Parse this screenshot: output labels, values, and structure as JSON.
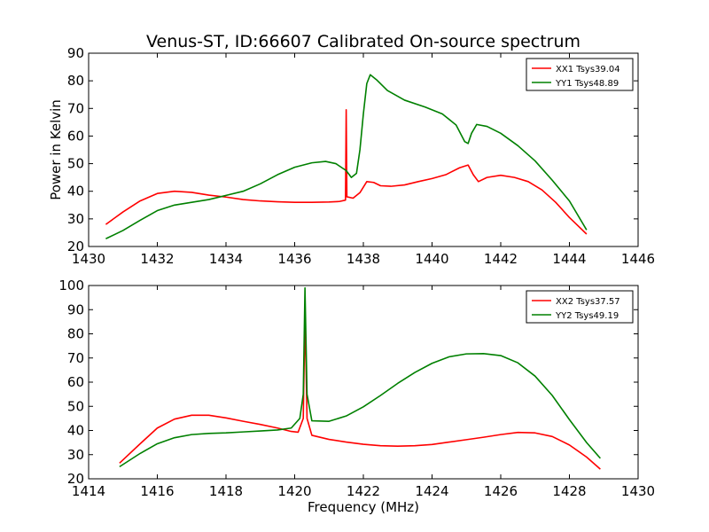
{
  "title": "Venus-ST, ID:66607 Calibrated On-source spectrum",
  "chart_data": [
    {
      "type": "line",
      "ylabel": "Power in Kelvin",
      "xlabel": "",
      "xlim": [
        1430,
        1446
      ],
      "ylim": [
        20,
        90
      ],
      "xticks": [
        1430,
        1432,
        1434,
        1436,
        1438,
        1440,
        1442,
        1444,
        1446
      ],
      "yticks": [
        20,
        30,
        40,
        50,
        60,
        70,
        80,
        90
      ],
      "grid": false,
      "legend_position": "top-right",
      "series": [
        {
          "name": "XX1 Tsys39.04",
          "color": "#ff0000",
          "points": [
            [
              1430.5,
              28
            ],
            [
              1431,
              32.5
            ],
            [
              1431.5,
              36.5
            ],
            [
              1432,
              39.2
            ],
            [
              1432.5,
              40
            ],
            [
              1433,
              39.6
            ],
            [
              1433.5,
              38.6
            ],
            [
              1434,
              37.9
            ],
            [
              1434.5,
              37
            ],
            [
              1435,
              36.5
            ],
            [
              1435.5,
              36.2
            ],
            [
              1436,
              36
            ],
            [
              1436.5,
              36
            ],
            [
              1437,
              36.1
            ],
            [
              1437.3,
              36.3
            ],
            [
              1437.48,
              36.8
            ],
            [
              1437.5,
              69.5
            ],
            [
              1437.52,
              38
            ],
            [
              1437.7,
              37.5
            ],
            [
              1437.9,
              39.5
            ],
            [
              1438.1,
              43.5
            ],
            [
              1438.3,
              43.2
            ],
            [
              1438.5,
              42
            ],
            [
              1438.8,
              41.8
            ],
            [
              1439.2,
              42.3
            ],
            [
              1439.6,
              43.5
            ],
            [
              1440,
              44.6
            ],
            [
              1440.4,
              46
            ],
            [
              1440.8,
              48.5
            ],
            [
              1441.05,
              49.5
            ],
            [
              1441.2,
              46
            ],
            [
              1441.35,
              43.5
            ],
            [
              1441.6,
              45
            ],
            [
              1442,
              45.8
            ],
            [
              1442.4,
              45
            ],
            [
              1442.8,
              43.5
            ],
            [
              1443.2,
              40.5
            ],
            [
              1443.6,
              36
            ],
            [
              1444,
              30.5
            ],
            [
              1444.5,
              24.5
            ]
          ]
        },
        {
          "name": "YY1 Tsys48.89",
          "color": "#008000",
          "points": [
            [
              1430.5,
              22.8
            ],
            [
              1431,
              25.8
            ],
            [
              1431.5,
              29.5
            ],
            [
              1432,
              33
            ],
            [
              1432.5,
              35
            ],
            [
              1433,
              36
            ],
            [
              1433.5,
              37
            ],
            [
              1434,
              38.5
            ],
            [
              1434.5,
              40
            ],
            [
              1435,
              42.7
            ],
            [
              1435.5,
              46
            ],
            [
              1436,
              48.7
            ],
            [
              1436.5,
              50.3
            ],
            [
              1436.9,
              50.8
            ],
            [
              1437.2,
              50
            ],
            [
              1437.5,
              47.5
            ],
            [
              1437.65,
              45
            ],
            [
              1437.8,
              46.5
            ],
            [
              1437.9,
              55
            ],
            [
              1438,
              68
            ],
            [
              1438.1,
              79
            ],
            [
              1438.2,
              82.2
            ],
            [
              1438.4,
              80.2
            ],
            [
              1438.7,
              76.5
            ],
            [
              1439.2,
              73
            ],
            [
              1439.8,
              70.5
            ],
            [
              1440.3,
              68
            ],
            [
              1440.7,
              64
            ],
            [
              1440.95,
              58
            ],
            [
              1441.05,
              57.3
            ],
            [
              1441.15,
              61
            ],
            [
              1441.3,
              64.2
            ],
            [
              1441.6,
              63.5
            ],
            [
              1442,
              61
            ],
            [
              1442.5,
              56.5
            ],
            [
              1443,
              51
            ],
            [
              1443.5,
              44
            ],
            [
              1444,
              36.5
            ],
            [
              1444.5,
              26
            ]
          ]
        }
      ]
    },
    {
      "type": "line",
      "ylabel": "",
      "xlabel": "Frequency (MHz)",
      "xlim": [
        1414,
        1430
      ],
      "ylim": [
        20,
        100
      ],
      "xticks": [
        1414,
        1416,
        1418,
        1420,
        1422,
        1424,
        1426,
        1428,
        1430
      ],
      "yticks": [
        20,
        30,
        40,
        50,
        60,
        70,
        80,
        90,
        100
      ],
      "grid": false,
      "legend_position": "top-right",
      "series": [
        {
          "name": "XX2 Tsys37.57",
          "color": "#ff0000",
          "points": [
            [
              1414.9,
              26.5
            ],
            [
              1415.5,
              34.5
            ],
            [
              1416,
              41
            ],
            [
              1416.5,
              44.7
            ],
            [
              1417,
              46.3
            ],
            [
              1417.5,
              46.3
            ],
            [
              1418,
              45.2
            ],
            [
              1418.5,
              43.8
            ],
            [
              1419,
              42.5
            ],
            [
              1419.5,
              41
            ],
            [
              1419.9,
              39.6
            ],
            [
              1420.1,
              39.3
            ],
            [
              1420.25,
              45
            ],
            [
              1420.3,
              88
            ],
            [
              1420.36,
              45
            ],
            [
              1420.5,
              38
            ],
            [
              1421,
              36.3
            ],
            [
              1421.5,
              35.2
            ],
            [
              1422,
              34.3
            ],
            [
              1422.5,
              33.7
            ],
            [
              1423,
              33.5
            ],
            [
              1423.5,
              33.7
            ],
            [
              1424,
              34.2
            ],
            [
              1424.5,
              35.2
            ],
            [
              1425,
              36.2
            ],
            [
              1425.5,
              37.2
            ],
            [
              1426,
              38.3
            ],
            [
              1426.5,
              39.2
            ],
            [
              1427,
              39
            ],
            [
              1427.5,
              37.5
            ],
            [
              1428,
              34
            ],
            [
              1428.5,
              29
            ],
            [
              1428.9,
              24
            ]
          ]
        },
        {
          "name": "YY2 Tsys49.19",
          "color": "#008000",
          "points": [
            [
              1414.9,
              25
            ],
            [
              1415.5,
              30.5
            ],
            [
              1416,
              34.5
            ],
            [
              1416.5,
              37
            ],
            [
              1417,
              38.3
            ],
            [
              1417.5,
              38.8
            ],
            [
              1418,
              39
            ],
            [
              1418.5,
              39.4
            ],
            [
              1419,
              39.8
            ],
            [
              1419.5,
              40.2
            ],
            [
              1419.9,
              41
            ],
            [
              1420.15,
              45
            ],
            [
              1420.25,
              55
            ],
            [
              1420.3,
              99
            ],
            [
              1420.36,
              55
            ],
            [
              1420.5,
              44
            ],
            [
              1421,
              43.8
            ],
            [
              1421.5,
              46
            ],
            [
              1422,
              49.8
            ],
            [
              1422.5,
              54.5
            ],
            [
              1423,
              59.5
            ],
            [
              1423.5,
              64
            ],
            [
              1424,
              67.8
            ],
            [
              1424.5,
              70.5
            ],
            [
              1425,
              71.7
            ],
            [
              1425.5,
              71.8
            ],
            [
              1426,
              71
            ],
            [
              1426.5,
              68
            ],
            [
              1427,
              62.5
            ],
            [
              1427.5,
              54.5
            ],
            [
              1428,
              44.5
            ],
            [
              1428.5,
              35
            ],
            [
              1428.9,
              28.5
            ]
          ]
        }
      ]
    }
  ]
}
